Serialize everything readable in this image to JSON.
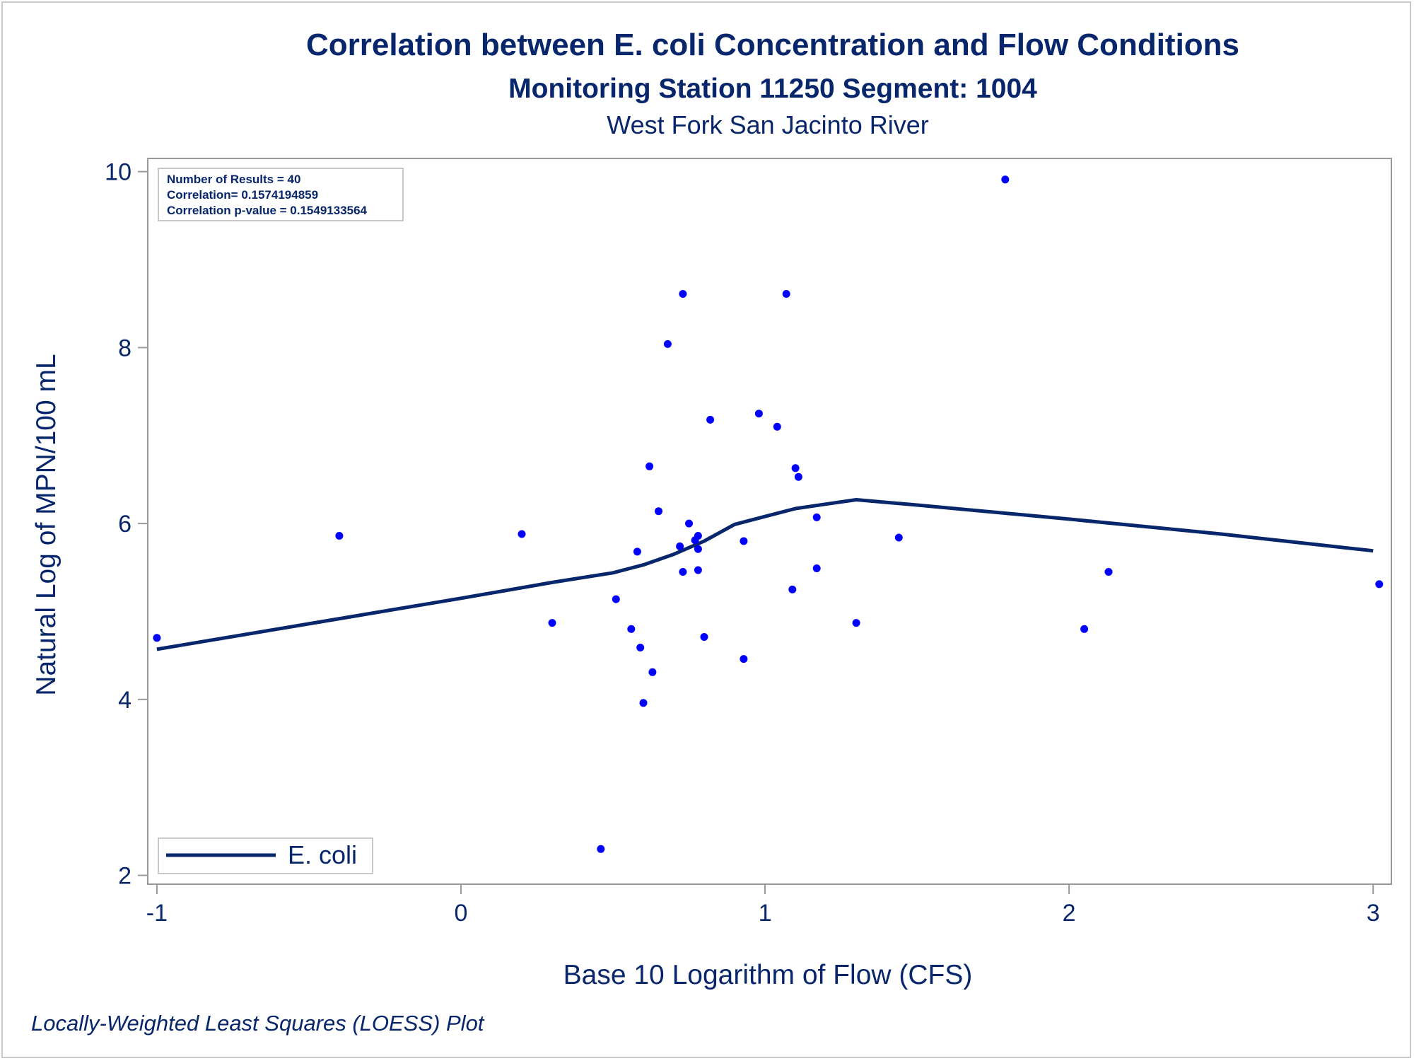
{
  "chart_data": {
    "type": "scatter",
    "title": "Correlation between E. coli Concentration and Flow Conditions",
    "subtitle": "Monitoring Station 11250 Segment: 1004",
    "subtitle2": "West Fork San Jacinto River",
    "xlabel": "Base 10 Logarithm of Flow (CFS)",
    "ylabel": "Natural Log of MPN/100 mL",
    "xlim": [
      -1.03,
      3.06
    ],
    "ylim": [
      1.9,
      10.15
    ],
    "x_ticks": [
      -1,
      0,
      1,
      2,
      3
    ],
    "x_tick_labels": [
      "-1",
      "0",
      "1",
      "2",
      "3"
    ],
    "y_ticks": [
      2,
      4,
      6,
      8,
      10
    ],
    "y_tick_labels": [
      "2",
      "4",
      "6",
      "8",
      "10"
    ],
    "grid": false,
    "legend_position": "bottom-left",
    "footnote": "Locally-Weighted Least Squares (LOESS) Plot",
    "stats": [
      "Number of Results = 40",
      "Correlation= 0.1574194859",
      "Correlation p-value = 0.1549133564"
    ],
    "colors": {
      "points": "#0000ff",
      "line": "#08266b",
      "text": "#08266b",
      "axis": "#999999"
    },
    "points": [
      {
        "x": -1.0,
        "y": 4.7
      },
      {
        "x": -0.4,
        "y": 5.86
      },
      {
        "x": 0.2,
        "y": 5.88
      },
      {
        "x": 0.3,
        "y": 4.87
      },
      {
        "x": 0.46,
        "y": 2.3
      },
      {
        "x": 0.51,
        "y": 5.14
      },
      {
        "x": 0.56,
        "y": 4.8
      },
      {
        "x": 0.58,
        "y": 5.68
      },
      {
        "x": 0.59,
        "y": 4.59
      },
      {
        "x": 0.6,
        "y": 3.96
      },
      {
        "x": 0.62,
        "y": 6.65
      },
      {
        "x": 0.63,
        "y": 4.31
      },
      {
        "x": 0.65,
        "y": 6.14
      },
      {
        "x": 0.68,
        "y": 8.04
      },
      {
        "x": 0.72,
        "y": 5.74
      },
      {
        "x": 0.73,
        "y": 5.45
      },
      {
        "x": 0.73,
        "y": 8.61
      },
      {
        "x": 0.75,
        "y": 6.0
      },
      {
        "x": 0.77,
        "y": 5.81
      },
      {
        "x": 0.78,
        "y": 5.71
      },
      {
        "x": 0.78,
        "y": 5.47
      },
      {
        "x": 0.78,
        "y": 5.86
      },
      {
        "x": 0.8,
        "y": 4.71
      },
      {
        "x": 0.82,
        "y": 7.18
      },
      {
        "x": 0.93,
        "y": 4.46
      },
      {
        "x": 0.93,
        "y": 5.8
      },
      {
        "x": 0.98,
        "y": 7.25
      },
      {
        "x": 1.04,
        "y": 7.1
      },
      {
        "x": 1.07,
        "y": 8.61
      },
      {
        "x": 1.09,
        "y": 5.25
      },
      {
        "x": 1.1,
        "y": 6.63
      },
      {
        "x": 1.11,
        "y": 6.53
      },
      {
        "x": 1.17,
        "y": 6.07
      },
      {
        "x": 1.17,
        "y": 5.49
      },
      {
        "x": 1.3,
        "y": 4.87
      },
      {
        "x": 1.44,
        "y": 5.84
      },
      {
        "x": 1.79,
        "y": 9.91
      },
      {
        "x": 2.05,
        "y": 4.8
      },
      {
        "x": 2.13,
        "y": 5.45
      },
      {
        "x": 3.02,
        "y": 5.31
      }
    ],
    "series": [
      {
        "name": "E. coli",
        "type": "loess",
        "x": [
          -1.0,
          -0.5,
          0.0,
          0.3,
          0.5,
          0.6,
          0.7,
          0.8,
          0.9,
          1.0,
          1.1,
          1.2,
          1.3,
          1.5,
          2.0,
          2.5,
          3.0
        ],
        "y": [
          4.57,
          4.86,
          5.15,
          5.33,
          5.44,
          5.53,
          5.65,
          5.8,
          5.99,
          6.08,
          6.17,
          6.22,
          6.27,
          6.21,
          6.05,
          5.88,
          5.69
        ]
      }
    ]
  }
}
